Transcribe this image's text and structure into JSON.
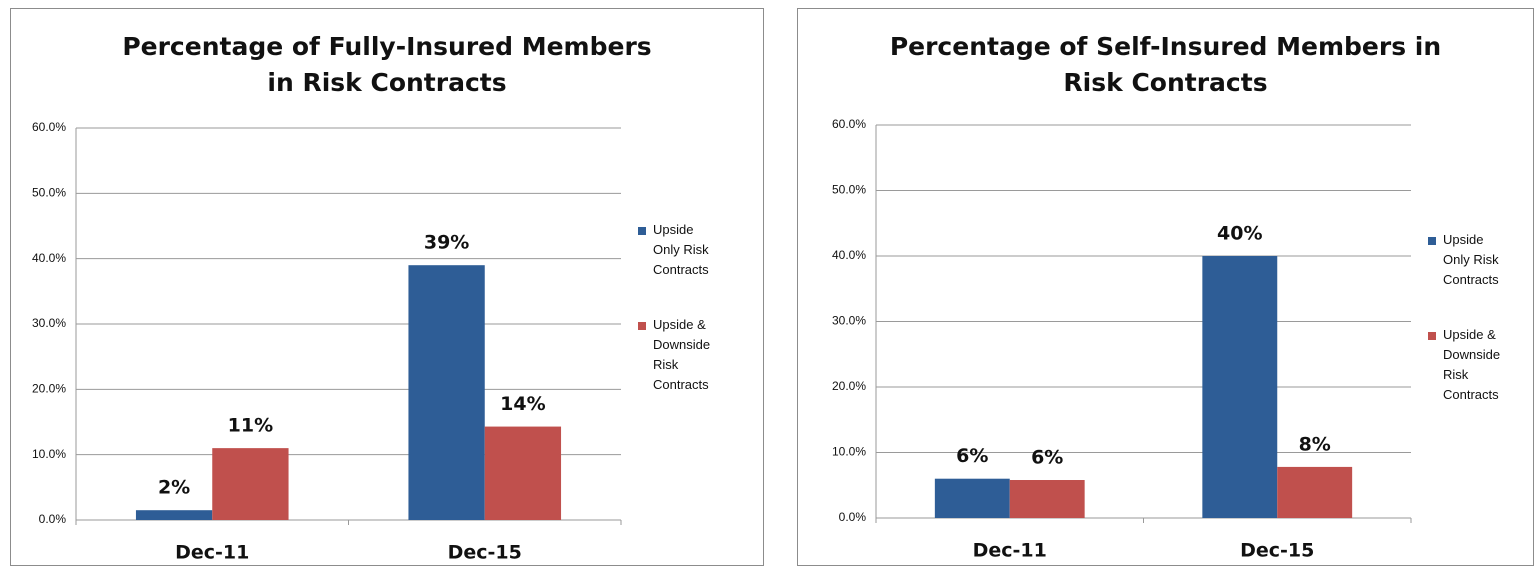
{
  "chart_data": [
    {
      "type": "bar",
      "title": "Percentage of Fully-Insured Members in Risk Contracts",
      "categories": [
        "Dec-11",
        "Dec-15"
      ],
      "series": [
        {
          "name": "Upside Only Risk Contracts",
          "color": "#2e5d96",
          "values": [
            1.5,
            39
          ],
          "value_labels": [
            "2%",
            "39%"
          ]
        },
        {
          "name": "Upside & Downside Risk Contracts",
          "color": "#c0504d",
          "values": [
            11,
            14.3
          ],
          "value_labels": [
            "11%",
            "14%"
          ]
        }
      ],
      "ylim": [
        0,
        60
      ],
      "yticks": [
        {
          "value": 0,
          "label": "0.0%"
        },
        {
          "value": 10,
          "label": "10.0%"
        },
        {
          "value": 20,
          "label": "20.0%"
        },
        {
          "value": 30,
          "label": "30.0%"
        },
        {
          "value": 40,
          "label": "40.0%"
        },
        {
          "value": 50,
          "label": "50.0%"
        },
        {
          "value": 60,
          "label": "60.0%"
        }
      ],
      "grid": true,
      "legend": "right"
    },
    {
      "type": "bar",
      "title": "Percentage of Self-Insured Members in Risk Contracts",
      "categories": [
        "Dec-11",
        "Dec-15"
      ],
      "series": [
        {
          "name": "Upside Only Risk Contracts",
          "color": "#2e5d96",
          "values": [
            6,
            40
          ],
          "value_labels": [
            "6%",
            "40%"
          ]
        },
        {
          "name": "Upside & Downside Risk Contracts",
          "color": "#c0504d",
          "values": [
            5.8,
            7.8
          ],
          "value_labels": [
            "6%",
            "8%"
          ]
        }
      ],
      "ylim": [
        0,
        60
      ],
      "yticks": [
        {
          "value": 0,
          "label": "0.0%"
        },
        {
          "value": 10,
          "label": "10.0%"
        },
        {
          "value": 20,
          "label": "20.0%"
        },
        {
          "value": 30,
          "label": "30.0%"
        },
        {
          "value": 40,
          "label": "40.0%"
        },
        {
          "value": 50,
          "label": "50.0%"
        },
        {
          "value": 60,
          "label": "60.0%"
        }
      ],
      "grid": true,
      "legend": "right"
    }
  ]
}
